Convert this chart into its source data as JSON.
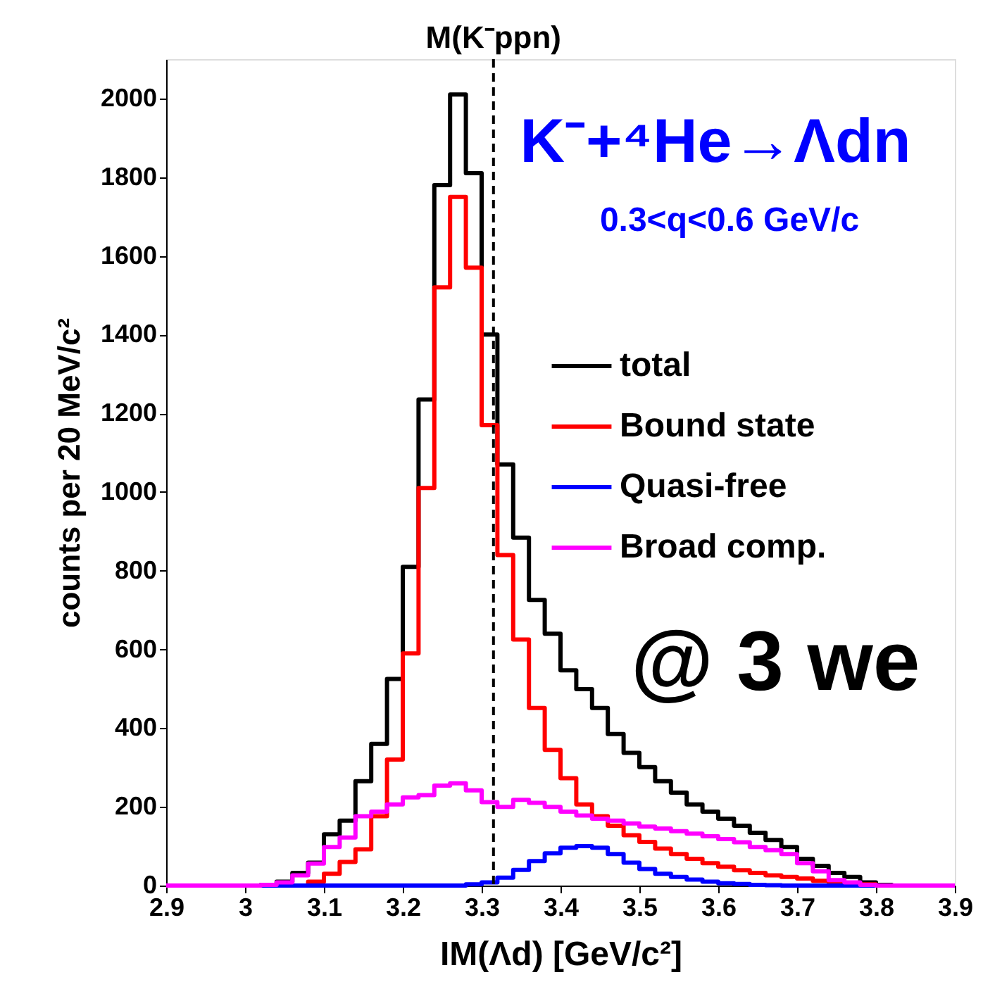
{
  "chart_data": {
    "type": "histogram",
    "xlabel": "IM(Λd) [GeV/c²]",
    "ylabel": "counts per 20 MeV/c²",
    "annotations": [
      "K⁻+⁴He→Λdn",
      "0.3<q<0.6 GeV/c",
      "@ 3 we"
    ],
    "bins": [
      2.9,
      2.92,
      2.94,
      2.96,
      2.98,
      3.0,
      3.02,
      3.04,
      3.06,
      3.08,
      3.1,
      3.12,
      3.14,
      3.16,
      3.18,
      3.2,
      3.22,
      3.24,
      3.26,
      3.28,
      3.3,
      3.32,
      3.34,
      3.36,
      3.38,
      3.4,
      3.42,
      3.44,
      3.46,
      3.48,
      3.5,
      3.52,
      3.54,
      3.56,
      3.58,
      3.6,
      3.62,
      3.64,
      3.66,
      3.68,
      3.7,
      3.72,
      3.74,
      3.76,
      3.78,
      3.8,
      3.82,
      3.84,
      3.86,
      3.88,
      3.9
    ],
    "series": [
      {
        "name": "total",
        "color": "#000000",
        "values": [
          0,
          0,
          0,
          0,
          0,
          0,
          2,
          10,
          32,
          58,
          130,
          165,
          265,
          360,
          525,
          810,
          1235,
          1780,
          2010,
          1810,
          1400,
          1070,
          884,
          726,
          640,
          547,
          499,
          451,
          385,
          337,
          301,
          265,
          236,
          206,
          188,
          170,
          152,
          134,
          116,
          98,
          68,
          50,
          32,
          22,
          8,
          2,
          0,
          0,
          0,
          0
        ]
      },
      {
        "name": "Bound state",
        "color": "#ff0000",
        "values": [
          0,
          0,
          0,
          0,
          0,
          0,
          0,
          0,
          0,
          10,
          30,
          60,
          92,
          176,
          320,
          590,
          1010,
          1520,
          1750,
          1570,
          1170,
          840,
          625,
          451,
          345,
          273,
          206,
          176,
          152,
          128,
          111,
          94,
          80,
          68,
          57,
          48,
          39,
          32,
          26,
          22,
          18,
          12,
          8,
          5,
          3,
          0,
          0,
          0,
          0,
          0
        ]
      },
      {
        "name": "Quasi-free",
        "color": "#0000ff",
        "values": [
          0,
          0,
          0,
          0,
          0,
          0,
          0,
          0,
          0,
          0,
          0,
          0,
          0,
          0,
          0,
          0,
          0,
          0,
          0,
          3,
          8,
          20,
          40,
          62,
          82,
          96,
          100,
          96,
          80,
          58,
          42,
          30,
          22,
          15,
          10,
          6,
          4,
          2,
          1,
          0,
          0,
          0,
          0,
          0,
          0,
          0,
          0,
          0,
          0,
          0
        ]
      },
      {
        "name": "Broad comp.",
        "color": "#ff00ff",
        "values": [
          0,
          0,
          0,
          0,
          0,
          0,
          2,
          8,
          26,
          56,
          98,
          122,
          176,
          188,
          206,
          224,
          230,
          254,
          260,
          242,
          212,
          200,
          218,
          210,
          200,
          188,
          178,
          170,
          165,
          158,
          150,
          145,
          138,
          132,
          125,
          118,
          110,
          98,
          90,
          80,
          57,
          36,
          14,
          8,
          2,
          0,
          0,
          0,
          0,
          0
        ]
      }
    ],
    "xlim": [
      2.9,
      3.9
    ],
    "xticks": [
      2.9,
      3,
      3.1,
      3.2,
      3.3,
      3.4,
      3.5,
      3.6,
      3.7,
      3.8,
      3.9
    ],
    "ylim": [
      0,
      2100
    ],
    "yticks": [
      0,
      200,
      400,
      600,
      800,
      1000,
      1200,
      1400,
      1600,
      1800,
      2000
    ],
    "ref_lines": [
      {
        "axis": "x",
        "value": 3.315,
        "label": "M(K⁻ppn)",
        "color": "#000000",
        "line_style": "dashed"
      }
    ],
    "legend": "right"
  }
}
